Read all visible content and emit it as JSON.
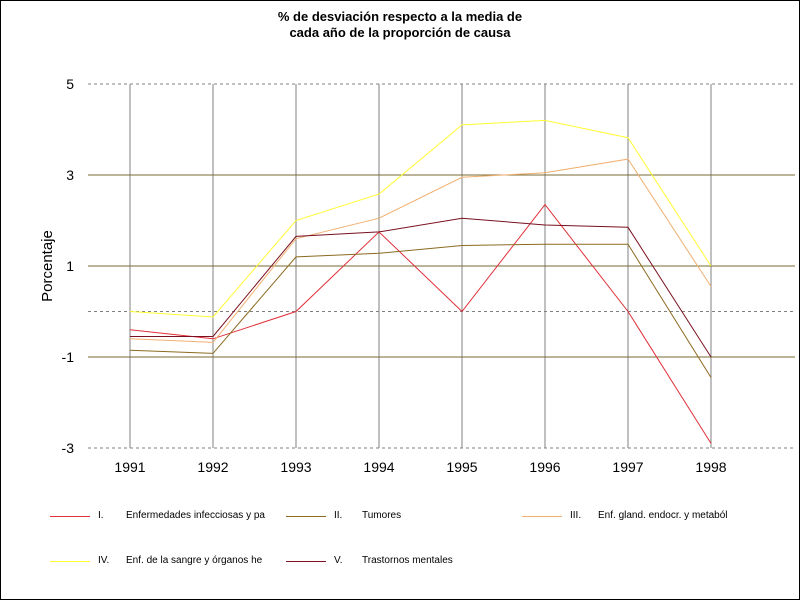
{
  "chart_data": {
    "type": "line",
    "title_lines": [
      "% de desviación respecto a la media de",
      "cada año de la proporción de causa"
    ],
    "ylabel": "Porcentaje",
    "xlabel": "",
    "x": [
      "1991",
      "1992",
      "1993",
      "1994",
      "1995",
      "1996",
      "1997",
      "1998"
    ],
    "ylim": [
      -3,
      5
    ],
    "yticks": [
      -3,
      -1,
      1,
      3,
      5
    ],
    "grid_solid": [
      -1,
      1,
      3
    ],
    "grid_dashed": [
      -3,
      0,
      5
    ],
    "series": [
      {
        "code": "I.",
        "name": "Enfermedades infecciosas y pa",
        "color": "#e0303a",
        "values": [
          -0.4,
          -0.6,
          0.0,
          1.75,
          0.0,
          2.35,
          0.0,
          -2.9
        ]
      },
      {
        "code": "II.",
        "name": "Tumores",
        "color": "#8b6a1e",
        "values": [
          -0.85,
          -0.92,
          1.2,
          1.28,
          1.45,
          1.48,
          1.48,
          -1.45
        ]
      },
      {
        "code": "III.",
        "name": "Enf. gland. endocr. y metaból",
        "color": "#f0b070",
        "values": [
          -0.6,
          -0.68,
          1.6,
          2.05,
          2.95,
          3.05,
          3.35,
          0.55
        ]
      },
      {
        "code": "IV.",
        "name": "Enf. de la sangre y órganos he",
        "color": "#ffff33",
        "values": [
          0.0,
          -0.12,
          2.0,
          2.58,
          4.1,
          4.2,
          3.82,
          1.0
        ]
      },
      {
        "code": "V.",
        "name": "Trastornos mentales",
        "color": "#7a1020",
        "values": [
          -0.55,
          -0.55,
          1.65,
          1.75,
          2.05,
          1.9,
          1.85,
          -1.0
        ]
      }
    ]
  }
}
